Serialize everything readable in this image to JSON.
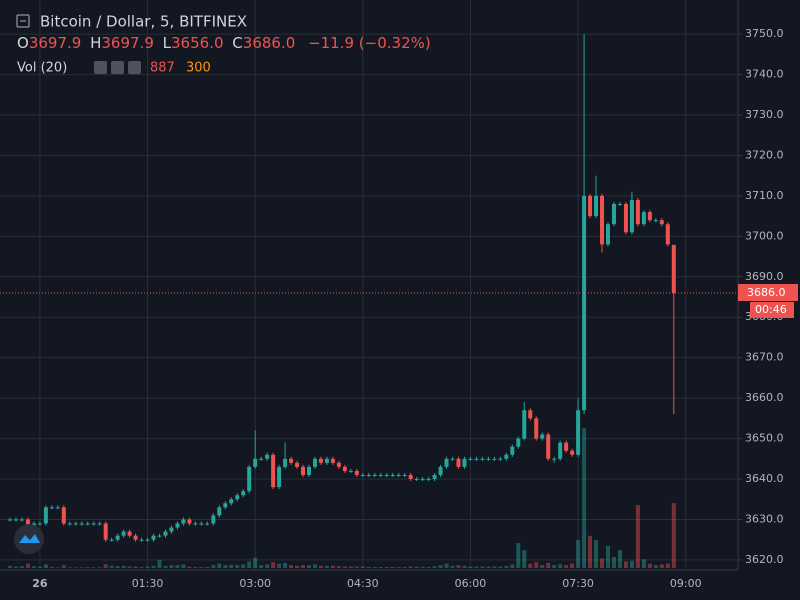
{
  "chart_data": {
    "type": "candlestick",
    "header": {
      "symbol": "Bitcoin / Dollar, 5, BITFINEX",
      "open_label": "O",
      "open": "3697.9",
      "high_label": "H",
      "high": "3697.9",
      "low_label": "L",
      "low": "3656.0",
      "close_label": "C",
      "close": "3686.0",
      "change": "−11.9 (−0.32%)",
      "volume_label": "Vol (20)",
      "volume_ma": 300
    },
    "x": [
      "23:35",
      "23:40",
      "23:45",
      "23:50",
      "23:55",
      "00:00",
      "00:05",
      "00:10",
      "00:15",
      "00:20",
      "00:25",
      "00:30",
      "00:35",
      "00:40",
      "00:45",
      "00:50",
      "00:55",
      "01:00",
      "01:05",
      "01:10",
      "01:15",
      "01:20",
      "01:25",
      "01:30",
      "01:35",
      "01:40",
      "01:45",
      "01:50",
      "01:55",
      "02:00",
      "02:05",
      "02:10",
      "02:15",
      "02:20",
      "02:25",
      "02:30",
      "02:35",
      "02:40",
      "02:45",
      "02:50",
      "02:55",
      "03:00",
      "03:05",
      "03:10",
      "03:15",
      "03:20",
      "03:25",
      "03:30",
      "03:35",
      "03:40",
      "03:45",
      "03:50",
      "03:55",
      "04:00",
      "04:05",
      "04:10",
      "04:15",
      "04:20",
      "04:25",
      "04:30",
      "04:35",
      "04:40",
      "04:45",
      "04:50",
      "04:55",
      "05:00",
      "05:05",
      "05:10",
      "05:15",
      "05:20",
      "05:25",
      "05:30",
      "05:35",
      "05:40",
      "05:45",
      "05:50",
      "05:55",
      "06:00",
      "06:05",
      "06:10",
      "06:15",
      "06:20",
      "06:25",
      "06:30",
      "06:35",
      "06:40",
      "06:45",
      "06:50",
      "06:55",
      "07:00",
      "07:05",
      "07:10",
      "07:15",
      "07:20",
      "07:25",
      "07:30",
      "07:35",
      "07:40",
      "07:45",
      "07:50",
      "07:55",
      "08:00",
      "08:05",
      "08:10",
      "08:15",
      "08:20",
      "08:25",
      "08:30",
      "08:35",
      "08:40",
      "08:45",
      "08:50"
    ],
    "open": [
      3630,
      3630,
      3630,
      3630,
      3628,
      3629,
      3629,
      3633,
      3633,
      3633,
      3629,
      3629,
      3629,
      3629,
      3629,
      3629,
      3629,
      3625,
      3625,
      3626,
      3627,
      3626,
      3625,
      3625,
      3625,
      3626,
      3626,
      3627,
      3628,
      3629,
      3630,
      3629,
      3629,
      3629,
      3629,
      3631,
      3633,
      3634,
      3635,
      3636,
      3637,
      3643,
      3645,
      3645,
      3646,
      3638,
      3643,
      3645,
      3644,
      3643,
      3641,
      3643,
      3645,
      3644,
      3645,
      3644,
      3643,
      3642,
      3642,
      3641,
      3641,
      3641,
      3641,
      3641,
      3641,
      3641,
      3641,
      3641,
      3640,
      3640,
      3640,
      3640,
      3641,
      3643,
      3645,
      3645,
      3643,
      3645,
      3645,
      3645,
      3645,
      3645,
      3645,
      3645,
      3646,
      3648,
      3650,
      3657,
      3655,
      3650,
      3651,
      3645,
      3645,
      3649,
      3647,
      3646,
      3657,
      3710,
      3705,
      3710,
      3698,
      3703,
      3708,
      3708,
      3701,
      3709,
      3703,
      3706,
      3704,
      3704,
      3703,
      3697.9
    ],
    "high": [
      3630.5,
      3630.5,
      3630.5,
      3630.5,
      3629.5,
      3629.5,
      3633.5,
      3633.5,
      3633.5,
      3633.5,
      3629.5,
      3629.5,
      3629.5,
      3629.5,
      3629.5,
      3629.5,
      3629.5,
      3625.5,
      3626.5,
      3627.5,
      3627.5,
      3626.5,
      3625.5,
      3625.5,
      3626.5,
      3626.5,
      3627.5,
      3628.5,
      3629.5,
      3630.5,
      3630.5,
      3629.5,
      3629.5,
      3629.5,
      3631.5,
      3633.5,
      3634.5,
      3635.5,
      3636.5,
      3637.5,
      3643.5,
      3652,
      3645.5,
      3646.5,
      3646.5,
      3643.5,
      3649,
      3645.5,
      3644.5,
      3643.5,
      3643.5,
      3645.5,
      3645.5,
      3645.5,
      3645.5,
      3644.5,
      3643.5,
      3642.5,
      3642.5,
      3641.5,
      3641.5,
      3641.5,
      3641.5,
      3641.5,
      3641.5,
      3641.5,
      3641.5,
      3641.5,
      3640.5,
      3640.5,
      3640.5,
      3641.5,
      3643.5,
      3645.5,
      3645.5,
      3645.5,
      3645.5,
      3645.5,
      3645.5,
      3645.5,
      3645.5,
      3645.5,
      3645.5,
      3646.5,
      3648.5,
      3650.5,
      3659,
      3657.5,
      3655.5,
      3651.5,
      3651.5,
      3645.5,
      3649.5,
      3649.5,
      3647.5,
      3660,
      3750,
      3710.5,
      3715,
      3710.5,
      3703.5,
      3708.5,
      3708.5,
      3708.5,
      3711,
      3709.5,
      3706.5,
      3706.5,
      3704.5,
      3704.5,
      3703.5,
      3697.9
    ],
    "low": [
      3629.5,
      3629.5,
      3629.5,
      3627.5,
      3627.5,
      3628.5,
      3628.5,
      3632.5,
      3632.5,
      3628.5,
      3628.5,
      3628.5,
      3628.5,
      3628.5,
      3628.5,
      3628.5,
      3624.5,
      3624.5,
      3624.5,
      3625.5,
      3625.5,
      3624.5,
      3624.5,
      3624.5,
      3624.5,
      3625.5,
      3625.5,
      3626.5,
      3627.5,
      3628.5,
      3628.5,
      3628.5,
      3628.5,
      3628.5,
      3628.5,
      3630.5,
      3632.5,
      3633.5,
      3634.5,
      3635.5,
      3636.5,
      3642.5,
      3644.5,
      3644.5,
      3637.5,
      3637.5,
      3642.5,
      3643.5,
      3642.5,
      3640.5,
      3640.5,
      3642.5,
      3643.5,
      3643.5,
      3643.5,
      3642.5,
      3641.5,
      3641.5,
      3640.5,
      3640.5,
      3640.5,
      3640.5,
      3640.5,
      3640.5,
      3640.5,
      3640.5,
      3640.5,
      3639.5,
      3639.5,
      3639.5,
      3639.5,
      3639.5,
      3640.5,
      3642.5,
      3644.5,
      3642.5,
      3642.5,
      3644.5,
      3644.5,
      3644.5,
      3644.5,
      3644.5,
      3644.5,
      3644.5,
      3645.5,
      3647.5,
      3649.5,
      3654.5,
      3649.5,
      3649.5,
      3644.5,
      3644,
      3644.5,
      3646.5,
      3645.5,
      3645.5,
      3656,
      3704.5,
      3704.5,
      3696,
      3697.5,
      3702.5,
      3707.5,
      3700.5,
      3700.5,
      3702.5,
      3702.5,
      3703.5,
      3703.5,
      3702.5,
      3697.5,
      3656
    ],
    "close": [
      3630,
      3630,
      3630,
      3628,
      3629,
      3629,
      3633,
      3633,
      3633,
      3629,
      3629,
      3629,
      3629,
      3629,
      3629,
      3629,
      3625,
      3625,
      3626,
      3627,
      3626,
      3625,
      3625,
      3625,
      3626,
      3626,
      3627,
      3628,
      3629,
      3630,
      3629,
      3629,
      3629,
      3629,
      3631,
      3633,
      3634,
      3635,
      3636,
      3637,
      3643,
      3645,
      3645,
      3646,
      3638,
      3643,
      3645,
      3644,
      3643,
      3641,
      3643,
      3645,
      3644,
      3645,
      3644,
      3643,
      3642,
      3642,
      3641,
      3641,
      3641,
      3641,
      3641,
      3641,
      3641,
      3641,
      3641,
      3640,
      3640,
      3640,
      3640,
      3641,
      3643,
      3645,
      3645,
      3643,
      3645,
      3645,
      3645,
      3645,
      3645,
      3645,
      3645,
      3646,
      3648,
      3650,
      3657,
      3655,
      3650,
      3651,
      3645,
      3645,
      3649,
      3647,
      3646,
      3657,
      3710,
      3705,
      3710,
      3698,
      3703,
      3708,
      3708,
      3701,
      3709,
      3703,
      3706,
      3704,
      3704,
      3703,
      3698,
      3686
    ],
    "volume": [
      30,
      20,
      25,
      60,
      25,
      20,
      50,
      15,
      10,
      40,
      10,
      10,
      10,
      10,
      10,
      10,
      50,
      30,
      25,
      30,
      20,
      20,
      15,
      20,
      30,
      110,
      30,
      40,
      40,
      50,
      20,
      15,
      15,
      15,
      40,
      60,
      40,
      45,
      40,
      50,
      90,
      140,
      40,
      50,
      80,
      60,
      70,
      40,
      30,
      40,
      40,
      50,
      30,
      30,
      30,
      25,
      20,
      20,
      20,
      20,
      15,
      15,
      15,
      15,
      15,
      15,
      15,
      20,
      20,
      15,
      15,
      25,
      40,
      60,
      30,
      40,
      30,
      20,
      20,
      20,
      20,
      20,
      20,
      30,
      50,
      340,
      245,
      60,
      80,
      40,
      70,
      40,
      50,
      40,
      60,
      380,
      1910,
      440,
      380,
      130,
      300,
      150,
      245,
      90,
      100,
      860,
      120,
      60,
      40,
      50,
      60,
      887
    ],
    "up_color": "#26a69a",
    "down_color": "#ef5350",
    "ylim": [
      3618,
      3757.2
    ],
    "yticks": [
      {
        "value": 3620,
        "label": "3620.0"
      },
      {
        "value": 3630,
        "label": "3630.0"
      },
      {
        "value": 3640,
        "label": "3640.0"
      },
      {
        "value": 3650,
        "label": "3650.0"
      },
      {
        "value": 3660,
        "label": "3660.0"
      },
      {
        "value": 3670,
        "label": "3670.0"
      },
      {
        "value": 3680,
        "label": "3680.0"
      },
      {
        "value": 3690,
        "label": "3690.0"
      },
      {
        "value": 3700,
        "label": "3700.0"
      },
      {
        "value": 3710,
        "label": "3710.0"
      },
      {
        "value": 3720,
        "label": "3720.0"
      },
      {
        "value": 3730,
        "label": "3730.0"
      },
      {
        "value": 3740,
        "label": "3740.0"
      },
      {
        "value": 3750,
        "label": "3750.0"
      }
    ],
    "y2lim": [
      0,
      7300
    ],
    "xticks": [
      {
        "value": "00:00",
        "label": "26"
      },
      "01:30",
      "03:00",
      "04:30",
      "06:00",
      "07:30",
      "09:00"
    ],
    "grid": true,
    "last_price_label": "3686.0",
    "countdown": "00:46"
  }
}
